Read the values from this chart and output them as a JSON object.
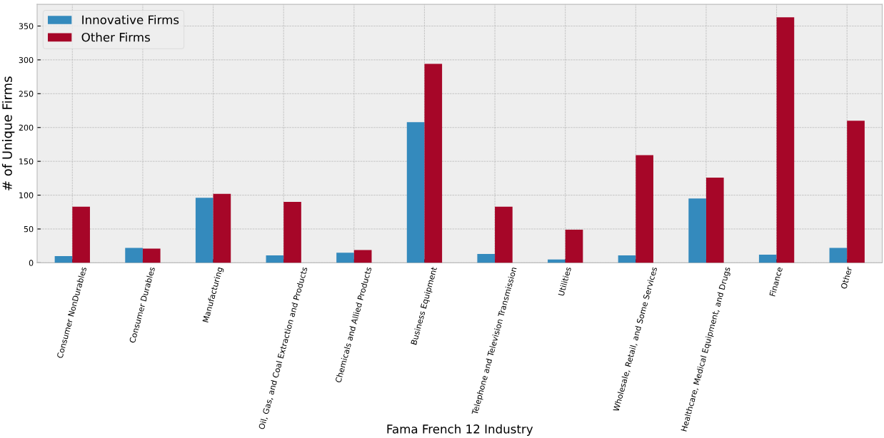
{
  "chart_data": {
    "type": "bar",
    "xlabel": "Fama French 12 Industry",
    "ylabel": "# of Unique Firms",
    "categories": [
      "Consumer NonDurables",
      "Consumer Durables",
      "Manufacturing",
      "Oil, Gas, and Coal Extraction and Products",
      "Chemicals and Allied Products",
      "Business Equipment",
      "Telephone and Television Transmission",
      "Utilities",
      "Wholesale, Retail, and Some Services",
      "Healthcare, Medical Equipment, and Drugs",
      "Finance",
      "Other"
    ],
    "series": [
      {
        "name": "Innovative Firms",
        "color": "#348abd",
        "values": [
          10,
          22,
          96,
          11,
          15,
          208,
          13,
          5,
          11,
          95,
          12,
          22
        ]
      },
      {
        "name": "Other Firms",
        "color": "#a60628",
        "values": [
          83,
          21,
          102,
          90,
          19,
          294,
          83,
          49,
          159,
          126,
          363,
          210
        ]
      }
    ],
    "ylim": [
      0,
      382
    ],
    "yticks": [
      0,
      50,
      100,
      150,
      200,
      250,
      300,
      350
    ],
    "grid": true,
    "legend": "top left"
  }
}
